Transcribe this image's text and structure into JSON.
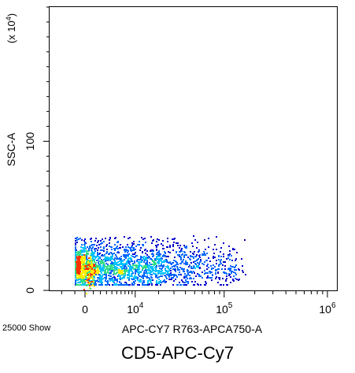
{
  "chart_data": {
    "type": "scatter",
    "subtype": "flow-cytometry-density",
    "title": "",
    "xlabel": "APC-CY7 R763-APCA750-A",
    "ylabel": "SSC-A",
    "y_multiplier_label": "(x 10^4)",
    "event_count_label": "25000 Show",
    "caption": "CD5-APC-Cy7",
    "x_scale": "biexponential",
    "xlim_text": [
      "0",
      "10^6"
    ],
    "ylim": [
      0,
      190
    ],
    "x_ticks": [
      {
        "base": "0",
        "exp": ""
      },
      {
        "base": "10",
        "exp": "4"
      },
      {
        "base": "10",
        "exp": "5"
      },
      {
        "base": "10",
        "exp": "6"
      }
    ],
    "y_ticks": [
      {
        "label": "0",
        "value": 0
      },
      {
        "label": "100",
        "value": 100
      }
    ],
    "population": {
      "events": 25000,
      "x_range_approx": [
        -1000,
        150000
      ],
      "y_range_approx": [
        4,
        44
      ],
      "x_mode_approx": 0,
      "y_mode_approx": 15
    },
    "density_colors": [
      "#0000cc",
      "#0066ff",
      "#00c0ff",
      "#33dd88",
      "#ffee00",
      "#ff3300"
    ],
    "grid": false,
    "legend": "none"
  }
}
